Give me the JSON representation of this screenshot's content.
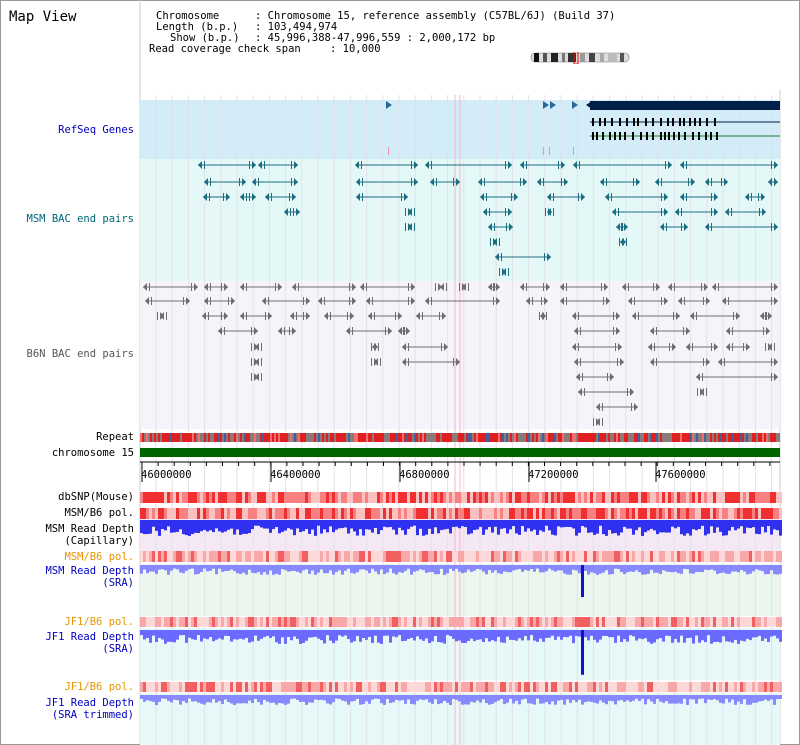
{
  "view_title": "Map View",
  "header": {
    "chromosome_label": "Chromosome",
    "chromosome_value": ": Chromosome 15, reference assembly (C57BL/6J) (Build 37)",
    "length_label": "Length (b.p.)",
    "length_value": ": 103,494,974",
    "show_label": "Show (b.p.)",
    "show_value": ": 45,996,388-47,996,559 : 2,000,172 bp",
    "coverage_label": "Read coverage check span",
    "coverage_value": ": 10,000"
  },
  "tracks": {
    "refseq": "RefSeq Genes",
    "msm_bac": "MSM BAC end pairs",
    "b6n_bac": "B6N BAC end pairs",
    "repeat": "Repeat",
    "chromosome": "chromosome 15",
    "dbsnp": "dbSNP(Mouse)",
    "msm_b6_pol": "MSM/B6 pol.",
    "msm_depth_cap_1": "MSM Read Depth",
    "msm_depth_cap_2": "(Capillary)",
    "msm_b6_pol_2": "MSM/B6 pol.",
    "msm_depth_sra_1": "MSM Read Depth",
    "msm_depth_sra_2": "(SRA)",
    "jf1_b6_pol": "JF1/B6 pol.",
    "jf1_depth_sra_1": "JF1 Read Depth",
    "jf1_depth_sra_2": "(SRA)",
    "jf1_b6_pol_2": "JF1/B6 pol.",
    "jf1_depth_trim_1": "JF1 Read Depth",
    "jf1_depth_trim_2": "(SRA trimmed)"
  },
  "axis_ticks": [
    "46000000",
    "46400000",
    "46800000",
    "47200000",
    "47600000"
  ],
  "colors": {
    "refseq_bg": "#d2ecf8",
    "msm_bg": "#e4f8f8",
    "b6n_bg": "#f6f4fa",
    "msm_track": "#1e6e82",
    "b6n_track": "#6e6e6e",
    "gene_dark": "#00204a",
    "chromosome_bar": "#006400",
    "depth_blue": "#3a3aff",
    "depth_light": "#8c8cff",
    "label_blue": "#0000c0",
    "label_teal": "#006478",
    "label_orange": "#e69600"
  }
}
